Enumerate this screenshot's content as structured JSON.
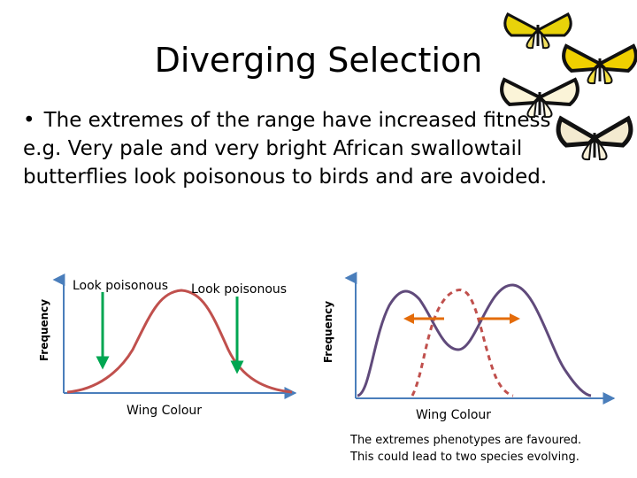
{
  "title": "Diverging Selection",
  "bullet": {
    "marker": "•",
    "lines": [
      "The extremes of the range have increased fitness",
      "e.g. Very pale and very bright African swallowtail",
      "butterflies look poisonous to birds and are avoided."
    ]
  },
  "left_graph": {
    "ylabel": "Frequency",
    "xlabel": "Wing Colour",
    "annotation_left": "Look poisonous",
    "annotation_right": "Look poisonous",
    "curve_color": "#c0504d",
    "arrow_color": "#00a651"
  },
  "right_graph": {
    "ylabel": "Frequency",
    "xlabel": "Wing Colour",
    "solid_curve_color": "#604a7b",
    "dashed_curve_color": "#c0504d",
    "arrow_color": "#e46c0a"
  },
  "caption": {
    "line1": "The extremes phenotypes are favoured.",
    "line2": "This could lead to two species evolving."
  },
  "axis_color": "#4a7ebb"
}
